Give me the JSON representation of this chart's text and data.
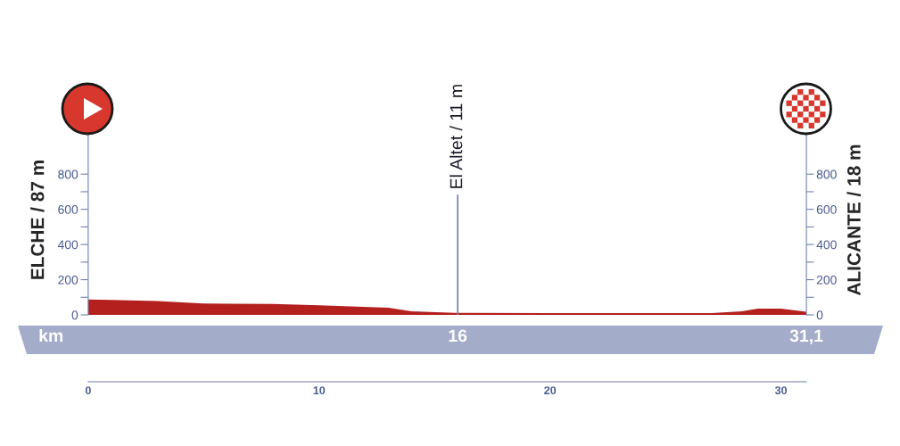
{
  "chart_data": {
    "type": "area",
    "ylabel": "ELCHE / 87 m",
    "y2label": "ALICANTE / 18 m",
    "x": [
      0,
      1,
      3,
      5,
      8,
      10,
      13,
      14,
      16,
      20,
      27,
      28.3,
      29,
      30,
      31.1
    ],
    "series": [
      {
        "color": "#b3201e",
        "values": [
          87,
          85,
          78,
          65,
          62,
          55,
          40,
          20,
          11,
          10,
          10,
          20,
          35,
          35,
          18
        ]
      }
    ],
    "xlim": [
      0,
      31.1
    ],
    "xticks": [
      0,
      10,
      20,
      30,
      {
        "value": 31.1,
        "label": null
      }
    ],
    "ylim": [
      0,
      1080
    ],
    "yticks": [
      0,
      {
        "value": 100,
        "label": null
      },
      200,
      {
        "value": 300,
        "label": null
      },
      400,
      {
        "value": 500,
        "label": null
      },
      600,
      {
        "value": 700,
        "label": null
      },
      800
    ],
    "y2lim": [
      0,
      1080
    ],
    "y2ticks": [
      0,
      {
        "value": 100,
        "label": null
      },
      200,
      {
        "value": 300,
        "label": null
      },
      400,
      {
        "value": 500,
        "label": null
      },
      600,
      {
        "value": 700,
        "label": null
      },
      800
    ],
    "ref_lines": [
      {
        "axis": "x",
        "value": 16,
        "label": "El Altet / 11 m"
      }
    ],
    "annotations": [
      "km",
      {
        "text": "16",
        "x": 16,
        "y": 0
      },
      {
        "text": "31,1",
        "x": 31.1,
        "y": 0
      }
    ],
    "grid": false,
    "legend": false
  }
}
